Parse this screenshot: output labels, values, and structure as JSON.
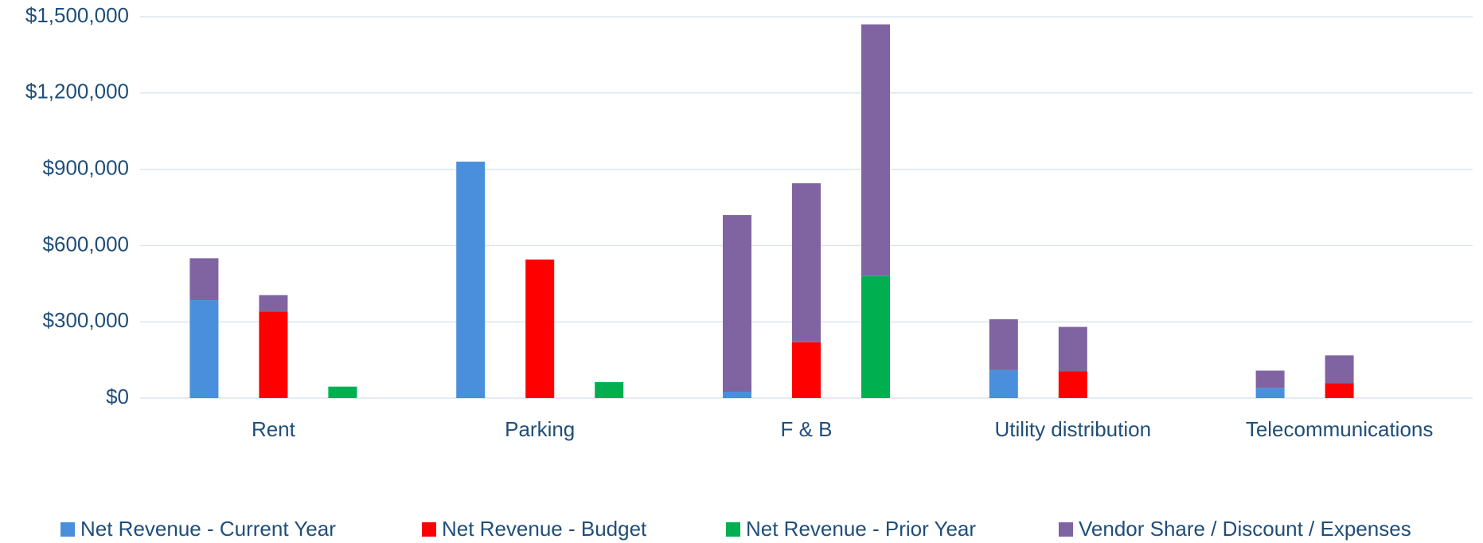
{
  "chart_data": {
    "type": "grouped_stacked_bar",
    "categories": [
      "Rent",
      "Parking",
      "F & B",
      "Utility distribution",
      "Telecommunications"
    ],
    "series": [
      {
        "name": "Net Revenue - Current Year",
        "color": "#4a8fdc",
        "values": [
          385000,
          930000,
          25000,
          110000,
          40000
        ]
      },
      {
        "name": "Net Revenue - Budget",
        "color": "#ff0000",
        "values": [
          340000,
          545000,
          220000,
          105000,
          58000
        ]
      },
      {
        "name": "Net Revenue - Prior Year",
        "color": "#00b050",
        "values": [
          45000,
          63000,
          480000,
          0,
          0
        ]
      },
      {
        "name": "Vendor Share / Discount / Expenses",
        "color": "#8064a2",
        "values": [
          [
            165000,
            65000,
            0
          ],
          [
            0,
            0,
            0
          ],
          [
            695000,
            625000,
            990000
          ],
          [
            200000,
            175000,
            0
          ],
          [
            68000,
            110000,
            0
          ]
        ]
      }
    ],
    "ylim": [
      0,
      1500000
    ],
    "yticks": [
      {
        "value": 0,
        "label": "$0"
      },
      {
        "value": 300000,
        "label": "$300,000"
      },
      {
        "value": 600000,
        "label": "$600,000"
      },
      {
        "value": 900000,
        "label": "$900,000"
      },
      {
        "value": 1200000,
        "label": "$1,200,000"
      },
      {
        "value": 1500000,
        "label": "$1,500,000"
      }
    ],
    "grid": true,
    "legend": "bottom"
  }
}
